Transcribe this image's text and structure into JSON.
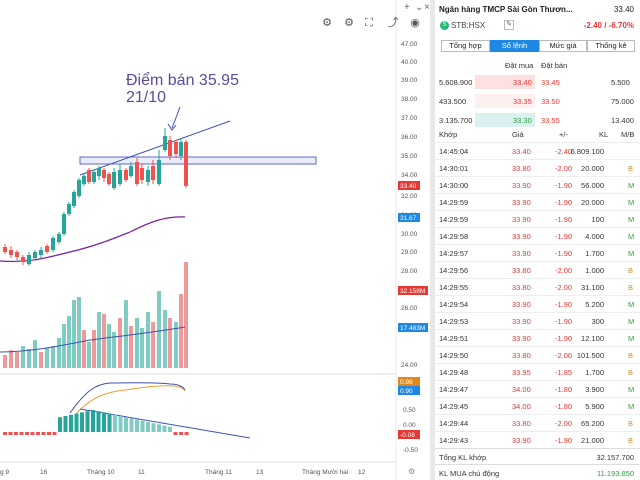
{
  "chart": {
    "annotation_line1": "Điểm bán 35.95",
    "annotation_line2": "21/10",
    "price_axis_ticks": [
      {
        "v": 47,
        "label": "47.00"
      },
      {
        "v": 40,
        "label": "40.00"
      },
      {
        "v": 39,
        "label": "39.00"
      },
      {
        "v": 38,
        "label": "38.00"
      },
      {
        "v": 37,
        "label": "37.00"
      },
      {
        "v": 36,
        "label": "36.00"
      },
      {
        "v": 35,
        "label": "35.00"
      },
      {
        "v": 34,
        "label": "34.00"
      },
      {
        "v": 32,
        "label": "32.00"
      },
      {
        "v": 31,
        "label": "31.00"
      },
      {
        "v": 30,
        "label": "30.00"
      },
      {
        "v": 29,
        "label": "29.00"
      },
      {
        "v": 28,
        "label": "28.00"
      },
      {
        "v": 27,
        "label": "27.00"
      },
      {
        "v": 26,
        "label": "26.00"
      },
      {
        "v": 25,
        "label": "25.00"
      },
      {
        "v": 24,
        "label": "24.00"
      }
    ],
    "oscillator_ticks": [
      "0.50",
      "0.00",
      "-0.50"
    ],
    "price_badges": [
      {
        "label": "33.40",
        "color": "#e53935"
      },
      {
        "label": "31.67",
        "color": "#1e88e5"
      },
      {
        "label": "32.158M",
        "color": "#e53935"
      },
      {
        "label": "17.483M",
        "color": "#1e88e5"
      },
      {
        "label": "0.98",
        "color": "#e08a1e"
      },
      {
        "label": "0.90",
        "color": "#1e88e5"
      },
      {
        "label": "-0.08",
        "color": "#e53935"
      }
    ],
    "time_labels": [
      "g 9",
      "16",
      "Tháng 10",
      "11",
      "Tháng 11",
      "13",
      "Tháng Mười hai",
      "12"
    ],
    "colors": {
      "up": "#26a69a",
      "down": "#ef5350",
      "ma": "#7b1fa2",
      "trend": "#3f51b5",
      "signal": "#f0a030"
    }
  },
  "toolbar": {
    "icons": [
      "settings-icon",
      "gear-icon",
      "fullscreen-icon",
      "share-icon",
      "camera-icon"
    ],
    "top": [
      "+",
      "⌄",
      "×"
    ]
  },
  "panel": {
    "title": "Ngân hàng TMCP Sài Gòn Thươn...",
    "price": "33.40",
    "symbol": "STB:HSX",
    "change": "-2.40 / -6.70%",
    "tabs": [
      "Tổng hợp",
      "Sổ lệnh",
      "Mức giá",
      "Thống kê"
    ],
    "orderbook_headers": {
      "bid": "Đặt mua",
      "ask": "Đặt bán"
    },
    "orderbook": [
      {
        "bid_vol": "5.608.900",
        "bid": "33.40",
        "ask": "33.45",
        "ask_vol": "5.500",
        "bid_color": "red",
        "ask_color": "red",
        "bg": "#fde0e0"
      },
      {
        "bid_vol": "433.500",
        "bid": "33.35",
        "ask": "33.50",
        "ask_vol": "75.000",
        "bid_color": "red",
        "ask_color": "red",
        "bg": "#fff0f0"
      },
      {
        "bid_vol": "3.135.700",
        "bid": "33.30",
        "ask": "33.55",
        "ask_vol": "13.400",
        "bid_color": "green",
        "ask_color": "red",
        "bg": "#d9f1f0"
      }
    ],
    "trades_headers": {
      "time": "Khớp",
      "price": "Giá",
      "change": "+/-",
      "vol": "KL",
      "side": "M/B"
    },
    "trades": [
      {
        "time": "14:45:04",
        "price": "33.40",
        "change": "-2.40",
        "vol": "6.809.100",
        "side": ""
      },
      {
        "time": "14:30:01",
        "price": "33.80",
        "change": "-2.00",
        "vol": "20.000",
        "side": "B"
      },
      {
        "time": "14:30:00",
        "price": "33.90",
        "change": "-1.90",
        "vol": "56.000",
        "side": "M"
      },
      {
        "time": "14:29:59",
        "price": "33.90",
        "change": "-1.90",
        "vol": "20.000",
        "side": "M"
      },
      {
        "time": "14:29:59",
        "price": "33.90",
        "change": "-1.90",
        "vol": "100",
        "side": "M"
      },
      {
        "time": "14:29:58",
        "price": "33.90",
        "change": "-1.90",
        "vol": "4.000",
        "side": "M"
      },
      {
        "time": "14:29:57",
        "price": "33.90",
        "change": "-1.90",
        "vol": "1.700",
        "side": "M"
      },
      {
        "time": "14:29:56",
        "price": "33.80",
        "change": "-2.00",
        "vol": "1.000",
        "side": "B"
      },
      {
        "time": "14:29:55",
        "price": "33.80",
        "change": "-2.00",
        "vol": "31.100",
        "side": "B"
      },
      {
        "time": "14:29:54",
        "price": "33.90",
        "change": "-1.90",
        "vol": "5.200",
        "side": "M"
      },
      {
        "time": "14:29:53",
        "price": "33.90",
        "change": "-1.90",
        "vol": "300",
        "side": "M"
      },
      {
        "time": "14:29:51",
        "price": "33.90",
        "change": "-1.90",
        "vol": "12.100",
        "side": "M"
      },
      {
        "time": "14:29:50",
        "price": "33.80",
        "change": "-2.00",
        "vol": "101.500",
        "side": "B"
      },
      {
        "time": "14:29:48",
        "price": "33.95",
        "change": "-1.85",
        "vol": "1.700",
        "side": "B"
      },
      {
        "time": "14:29:47",
        "price": "34.00",
        "change": "-1.80",
        "vol": "3.900",
        "side": "M"
      },
      {
        "time": "14:29:45",
        "price": "34.00",
        "change": "-1.80",
        "vol": "5.900",
        "side": "M"
      },
      {
        "time": "14:29:44",
        "price": "33.80",
        "change": "-2.00",
        "vol": "65.200",
        "side": "B"
      },
      {
        "time": "14:29:43",
        "price": "33.90",
        "change": "-1.90",
        "vol": "21.000",
        "side": "B"
      }
    ],
    "summary": [
      {
        "label": "Tổng KL khớp",
        "value": "32.157.700"
      },
      {
        "label": "KL MUA chủ động",
        "value": "11.193.850"
      }
    ]
  }
}
